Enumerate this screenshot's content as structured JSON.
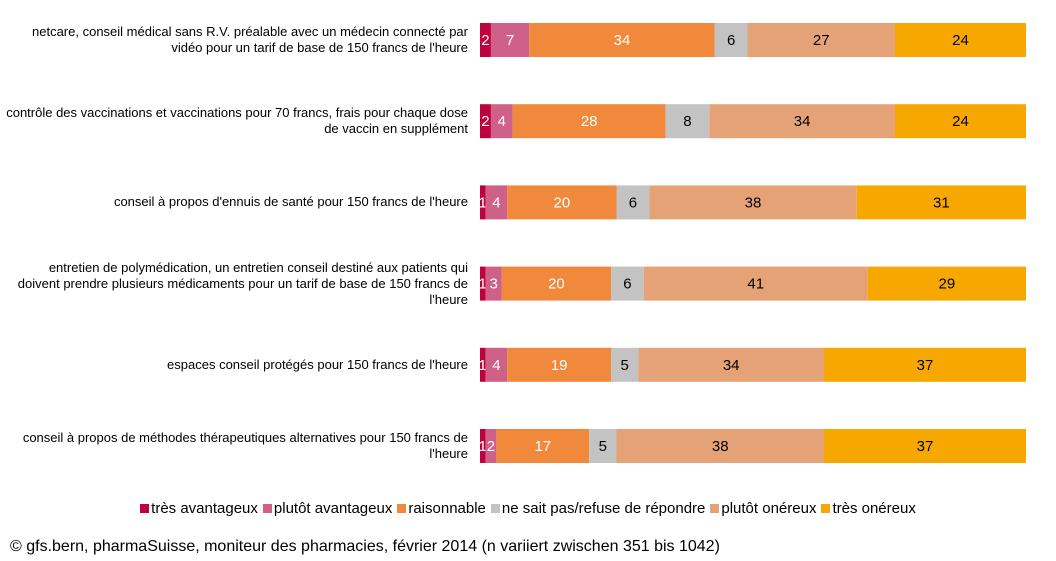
{
  "chart_data": {
    "type": "stacked-bar-horizontal",
    "categories": [
      "netcare, conseil médical sans R.V. préalable avec un médecin connecté par vidéo pour un tarif de base de 150 francs de l'heure",
      "contrôle des vaccinations et vaccinations pour 70 francs, frais pour chaque dose de vaccin en supplément",
      "conseil à propos d'ennuis de santé pour 150 francs de l'heure",
      "entretien de polymédication, un entretien conseil destiné aux patients qui doivent prendre plusieurs médicaments pour un tarif de base de 150 francs de l'heure",
      "espaces conseil protégés pour 150 francs de l'heure",
      "conseil à propos de méthodes thérapeutiques alternatives pour 150 francs de l'heure"
    ],
    "series": [
      {
        "name": "très avantageux",
        "color": "#c0003c",
        "label_color": "#ffffff",
        "values": [
          2,
          2,
          1,
          1,
          1,
          1
        ]
      },
      {
        "name": "plutôt avantageux",
        "color": "#cf6189",
        "label_color": "#ffffff",
        "values": [
          7,
          4,
          4,
          3,
          4,
          2
        ]
      },
      {
        "name": "raisonnable",
        "color": "#f0893b",
        "label_color": "#ffffff",
        "values": [
          34,
          28,
          20,
          20,
          19,
          17
        ]
      },
      {
        "name": "ne sait pas/refuse de répondre",
        "color": "#c3c3c3",
        "label_color": "#000000",
        "values": [
          6,
          8,
          6,
          6,
          5,
          5
        ]
      },
      {
        "name": "plutôt onéreux",
        "color": "#e6a277",
        "label_color": "#000000",
        "values": [
          27,
          34,
          38,
          41,
          34,
          38
        ]
      },
      {
        "name": "très onéreux",
        "color": "#f6a800",
        "label_color": "#000000",
        "values": [
          24,
          24,
          31,
          29,
          37,
          37
        ]
      }
    ],
    "xlim": [
      0,
      100
    ],
    "source": "© gfs.bern, pharmaSuisse, moniteur des pharmacies, février 2014 (n variiert zwischen 351 bis 1042)"
  }
}
